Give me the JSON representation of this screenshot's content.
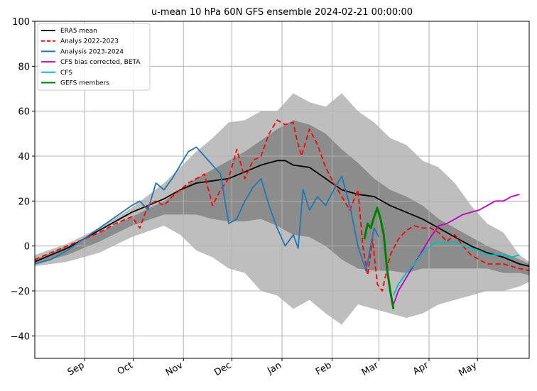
{
  "chart_data": {
    "type": "line",
    "title": "u-mean 10 hPa 60N GFS ensemble 2024-02-21 00:00:00",
    "xlabel": "",
    "ylabel": "",
    "ylim": [
      -50,
      100
    ],
    "yticks": [
      -40,
      -20,
      0,
      20,
      40,
      60,
      80,
      100
    ],
    "xlim": [
      0,
      306
    ],
    "xticks": [
      {
        "label": "Sep",
        "day": 31
      },
      {
        "label": "Oct",
        "day": 61
      },
      {
        "label": "Nov",
        "day": 92
      },
      {
        "label": "Dec",
        "day": 122
      },
      {
        "label": "Jan",
        "day": 153
      },
      {
        "label": "Feb",
        "day": 184
      },
      {
        "label": "Mar",
        "day": 213
      },
      {
        "label": "Apr",
        "day": 244
      },
      {
        "label": "May",
        "day": 274
      }
    ],
    "grid": true,
    "legend_position": "upper-left",
    "bands": [
      {
        "name": "min-max",
        "color": "#bebebe",
        "x": [
          0,
          20,
          40,
          60,
          80,
          90,
          100,
          110,
          120,
          130,
          140,
          150,
          160,
          170,
          180,
          190,
          200,
          210,
          220,
          230,
          240,
          250,
          260,
          270,
          280,
          290,
          300,
          306
        ],
        "upper": [
          -4,
          1,
          8,
          17,
          28,
          35,
          42,
          48,
          55,
          56,
          60,
          60,
          68,
          64,
          62,
          68,
          60,
          55,
          48,
          45,
          38,
          35,
          28,
          18,
          10,
          6,
          -4,
          -7
        ],
        "lower": [
          -9,
          -7,
          -3,
          4,
          9,
          5,
          -2,
          -5,
          -10,
          -12,
          -20,
          -22,
          -28,
          -24,
          -30,
          -35,
          -26,
          -28,
          -30,
          -32,
          -30,
          -26,
          -24,
          -22,
          -20,
          -20,
          -18,
          -16
        ]
      },
      {
        "name": "inner range",
        "color": "#8c8c8c",
        "x": [
          0,
          20,
          40,
          60,
          80,
          90,
          100,
          110,
          120,
          130,
          140,
          150,
          160,
          170,
          180,
          190,
          200,
          210,
          220,
          230,
          240,
          250,
          260,
          270,
          280,
          290,
          300,
          306
        ],
        "upper": [
          -6,
          0,
          6,
          13,
          20,
          25,
          30,
          34,
          38,
          42,
          47,
          52,
          56,
          54,
          50,
          43,
          37,
          30,
          25,
          22,
          18,
          12,
          8,
          4,
          0,
          -3,
          -6,
          -8
        ],
        "lower": [
          -8,
          -4,
          2,
          9,
          14,
          14,
          14,
          12,
          11,
          11,
          12,
          9,
          5,
          4,
          0,
          -6,
          -10,
          -11,
          -11,
          -12,
          -10,
          -10,
          -10,
          -10,
          -10,
          -12,
          -12,
          -13
        ]
      }
    ],
    "series": [
      {
        "name": "ERA5 mean",
        "color": "#000000",
        "dash": "",
        "x": [
          0,
          10,
          20,
          30,
          40,
          50,
          60,
          70,
          80,
          90,
          100,
          110,
          120,
          130,
          140,
          150,
          155,
          160,
          170,
          180,
          190,
          200,
          210,
          220,
          230,
          240,
          250,
          260,
          270,
          280,
          290,
          300,
          306
        ],
        "y": [
          -7,
          -4,
          -1,
          3,
          7,
          11,
          15,
          18,
          21,
          25,
          28,
          29,
          30,
          33,
          36,
          38,
          38,
          36,
          35,
          30,
          25,
          23,
          22,
          18,
          15,
          12,
          8,
          4,
          0,
          -3,
          -5,
          -8,
          -9
        ]
      },
      {
        "name": "Analys 2022-2023",
        "color": "#ff0000",
        "dash": "7,4",
        "x": [
          0,
          10,
          20,
          30,
          40,
          50,
          60,
          65,
          70,
          75,
          80,
          85,
          90,
          95,
          100,
          105,
          110,
          115,
          120,
          125,
          130,
          135,
          140,
          145,
          150,
          155,
          160,
          162,
          165,
          170,
          175,
          180,
          185,
          190,
          195,
          200,
          203,
          206,
          209,
          212,
          215,
          220,
          225,
          230,
          235,
          240,
          245,
          250,
          255,
          260,
          265,
          270,
          275,
          280,
          285,
          290,
          295,
          300,
          306
        ],
        "y": [
          -6,
          -3,
          0,
          3,
          6,
          10,
          13,
          8,
          18,
          20,
          18,
          22,
          25,
          28,
          30,
          32,
          18,
          25,
          30,
          43,
          30,
          38,
          40,
          50,
          56,
          54,
          55,
          48,
          40,
          52,
          45,
          35,
          28,
          22,
          16,
          25,
          0,
          -13,
          3,
          -17,
          -20,
          -4,
          3,
          7,
          9,
          8,
          8,
          6,
          2,
          5,
          0,
          -4,
          -6,
          -8,
          -8,
          -8,
          -9,
          -10,
          -11
        ]
      },
      {
        "name": "Analysis 2023-2024",
        "color": "#1f77b4",
        "dash": "",
        "x": [
          0,
          10,
          20,
          30,
          40,
          50,
          60,
          65,
          70,
          75,
          80,
          85,
          90,
          95,
          100,
          105,
          110,
          115,
          120,
          125,
          130,
          135,
          140,
          145,
          150,
          155,
          160,
          163,
          166,
          170,
          175,
          180,
          185,
          190,
          195,
          200,
          205,
          210,
          213
        ],
        "y": [
          -8,
          -6,
          -2,
          3,
          8,
          13,
          18,
          20,
          16,
          28,
          25,
          30,
          36,
          42,
          44,
          40,
          36,
          32,
          10,
          12,
          20,
          26,
          30,
          18,
          8,
          0,
          5,
          -1,
          25,
          16,
          22,
          18,
          25,
          31,
          18,
          0,
          -11,
          8,
          4
        ]
      },
      {
        "name": "CFS bias corrected, BETA",
        "color": "#bf00bf",
        "dash": "",
        "x": [
          222,
          225,
          230,
          235,
          240,
          245,
          250,
          255,
          260,
          265,
          270,
          275,
          280,
          285,
          290,
          295,
          300
        ],
        "y": [
          -26,
          -20,
          -14,
          -8,
          -2,
          4,
          9,
          10,
          12,
          14,
          15,
          16,
          18,
          20,
          20,
          22,
          23
        ]
      },
      {
        "name": "CFS",
        "color": "#00bfbf",
        "dash": "",
        "x": [
          222,
          225,
          230,
          235,
          240,
          245,
          250,
          255,
          260,
          265,
          270,
          275,
          280,
          285,
          290,
          295,
          300
        ],
        "y": [
          -22,
          -17,
          -12,
          -8,
          -3,
          0,
          2,
          1,
          2,
          0,
          -1,
          -2,
          -4,
          -4,
          -4,
          -5,
          -4
        ]
      },
      {
        "name": "GEFS members",
        "color": "#008000",
        "dash": "",
        "x": [
          204,
          206,
          208,
          210,
          212,
          214,
          216,
          218,
          220,
          222
        ],
        "y": [
          3,
          10,
          8,
          13,
          17,
          12,
          5,
          -10,
          -20,
          -28
        ]
      }
    ]
  }
}
